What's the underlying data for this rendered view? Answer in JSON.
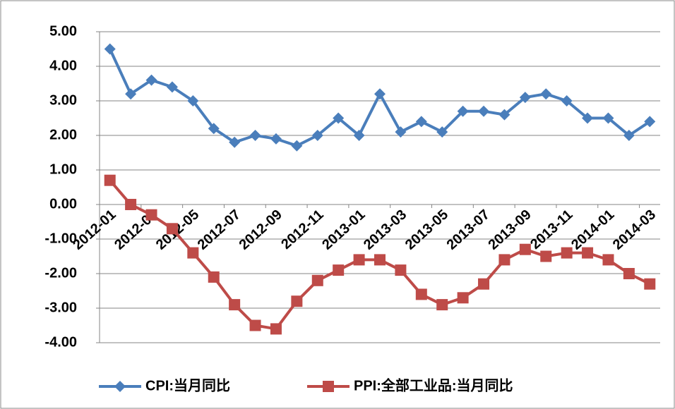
{
  "chart_data": {
    "type": "line",
    "categories": [
      "2012-01",
      null,
      "2012-03",
      null,
      "2012-05",
      null,
      "2012-07",
      null,
      "2012-09",
      null,
      "2012-11",
      null,
      "2013-01",
      null,
      "2013-03",
      null,
      "2013-05",
      null,
      "2013-07",
      null,
      "2013-09",
      null,
      "2013-11",
      null,
      "2014-01",
      null,
      "2014-03"
    ],
    "series": [
      {
        "name": "CPI:当月同比",
        "color": "#4a7ebb",
        "marker": "diamond",
        "values": [
          4.5,
          3.2,
          3.6,
          3.4,
          3.0,
          2.2,
          1.8,
          2.0,
          1.9,
          1.7,
          2.0,
          2.5,
          2.0,
          3.2,
          2.1,
          2.4,
          2.1,
          2.7,
          2.7,
          2.6,
          3.1,
          3.2,
          3.0,
          2.5,
          2.5,
          2.0,
          2.4
        ]
      },
      {
        "name": "PPI:全部工业品:当月同比",
        "color": "#be4b48",
        "marker": "square",
        "values": [
          0.7,
          0.0,
          -0.3,
          -0.7,
          -1.4,
          -2.1,
          -2.9,
          -3.5,
          -3.6,
          -2.8,
          -2.2,
          -1.9,
          -1.6,
          -1.6,
          -1.9,
          -2.6,
          -2.9,
          -2.7,
          -2.3,
          -1.6,
          -1.3,
          -1.5,
          -1.4,
          -1.4,
          -1.6,
          -2.0,
          -2.3
        ]
      }
    ],
    "ylim": [
      -4,
      5
    ],
    "yticks": [
      {
        "value": -4,
        "label": "-4.00"
      },
      {
        "value": -3,
        "label": "-3.00"
      },
      {
        "value": -2,
        "label": "-2.00"
      },
      {
        "value": -1,
        "label": "-1.00"
      },
      {
        "value": 0,
        "label": "0.00"
      },
      {
        "value": 1,
        "label": "1.00"
      },
      {
        "value": 2,
        "label": "2.00"
      },
      {
        "value": 3,
        "label": "3.00"
      },
      {
        "value": 4,
        "label": "4.00"
      },
      {
        "value": 5,
        "label": "5.00"
      }
    ],
    "grid": true,
    "legend": "bottom"
  }
}
